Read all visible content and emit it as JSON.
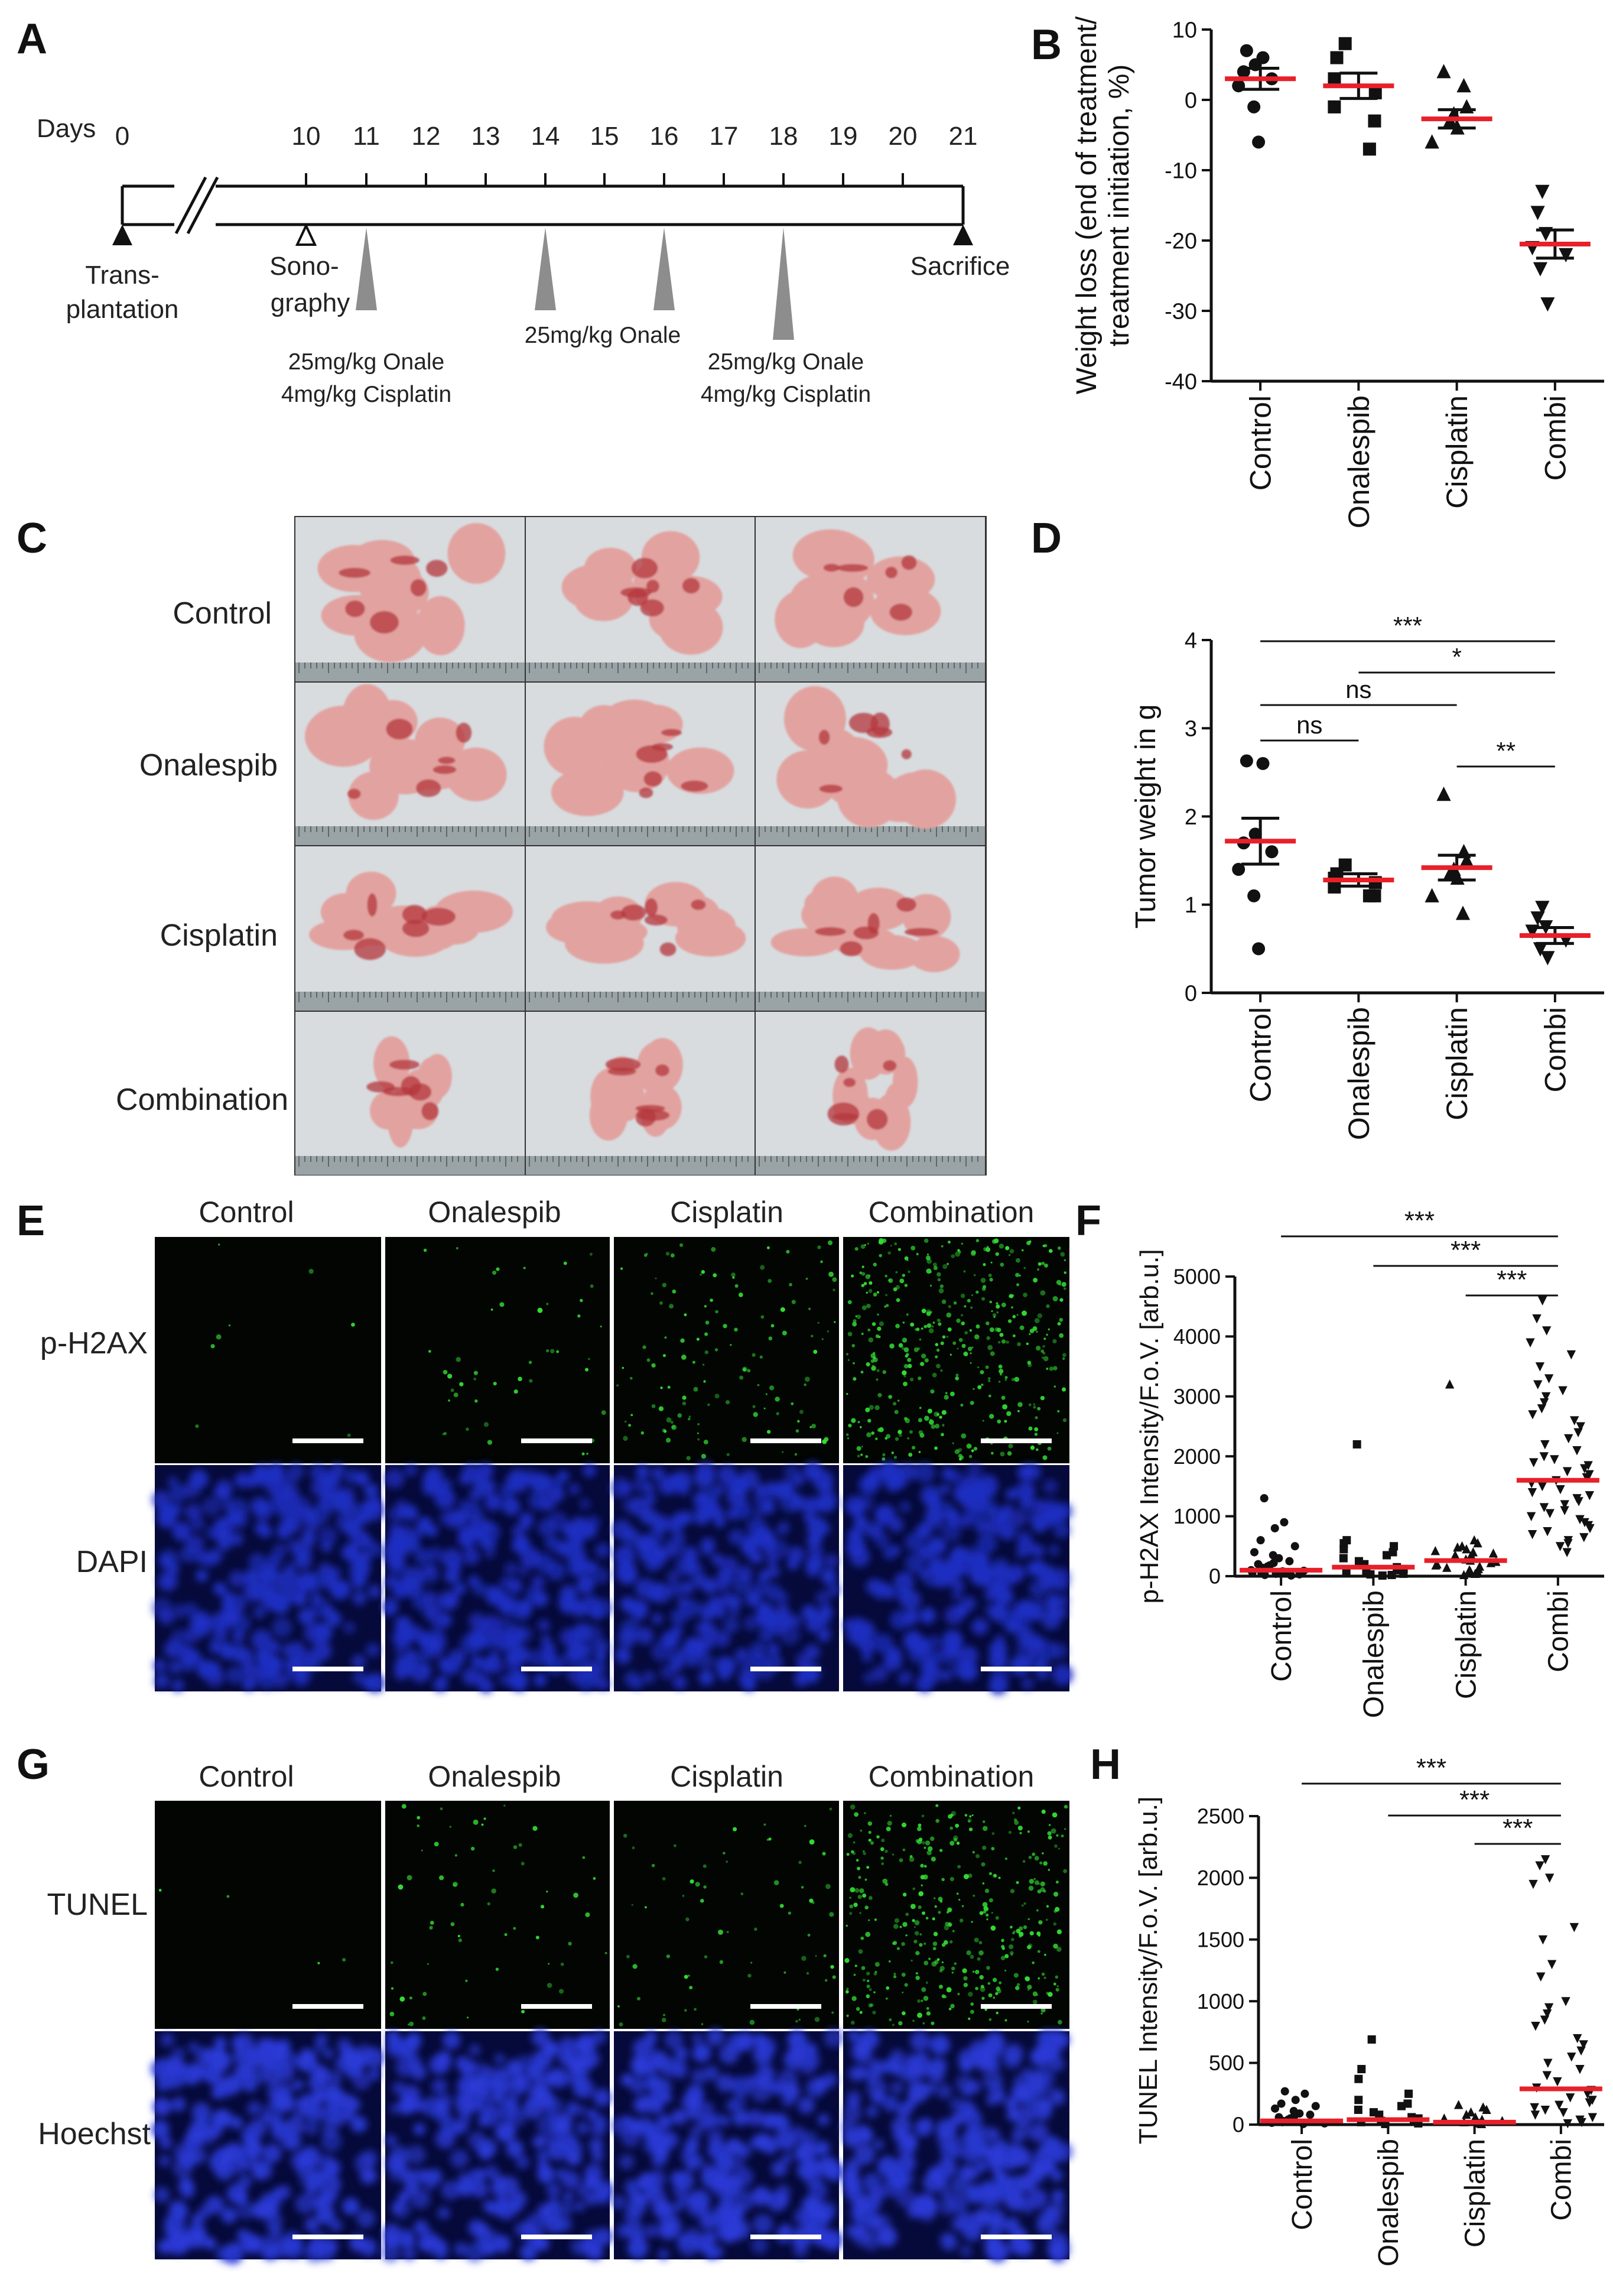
{
  "panel_letters": [
    "A",
    "B",
    "C",
    "D",
    "E",
    "F",
    "G",
    "H"
  ],
  "timeline": {
    "days_label": "Days",
    "ticks": [
      "0",
      "10",
      "11",
      "12",
      "13",
      "14",
      "15",
      "16",
      "17",
      "18",
      "19",
      "20",
      "21"
    ],
    "transplantation": [
      "Trans-",
      "plantation"
    ],
    "sonography": [
      "Sono-",
      "graphy"
    ],
    "sacrifice": "Sacrifice",
    "dose1": [
      "25mg/kg Onale",
      "4mg/kg Cisplatin"
    ],
    "dose2": [
      "25mg/kg Onale"
    ],
    "dose3": [
      "25mg/kg Onale",
      "4mg/kg Cisplatin"
    ]
  },
  "photo_grid": {
    "rows": [
      "Control",
      "Onalespib",
      "Cisplatin",
      "Combination"
    ],
    "colors": {
      "background": "#d8dcdf",
      "tissue": "#e2a3a0",
      "tissue_dark": "#b4353c",
      "ruler": "#9aa3a6"
    }
  },
  "micro_headers": [
    "Control",
    "Onalespib",
    "Cisplatin",
    "Combination"
  ],
  "micro_E": {
    "rows": [
      "p-H2AX",
      "DAPI"
    ],
    "colors": {
      "signal": "#33dd33",
      "nuclei": "#1f2fc4"
    }
  },
  "micro_G": {
    "rows": [
      "TUNEL",
      "Hoechst"
    ],
    "colors": {
      "signal": "#33dd33",
      "nuclei": "#2a3ad6"
    }
  },
  "chart_data": [
    {
      "id": "B",
      "type": "scatter",
      "categories": [
        "Control",
        "Onalespib",
        "Cisplatin",
        "Combi"
      ],
      "ylabel": [
        "Weight loss (end of treatment/",
        "treatment initiation, %)"
      ],
      "ylim": [
        -40,
        10
      ],
      "yticks": [
        -40,
        -30,
        -20,
        -10,
        0,
        10
      ],
      "markers": [
        "circle",
        "square",
        "triangle-up",
        "triangle-down"
      ],
      "points": [
        [
          7,
          6,
          5,
          4,
          3,
          2,
          -1,
          -6
        ],
        [
          8,
          6,
          3,
          1,
          -1,
          -3,
          -7
        ],
        [
          4,
          2,
          -1,
          -2,
          -3,
          -4,
          -6
        ],
        [
          -13,
          -16,
          -19,
          -21,
          -22,
          -24,
          -29
        ]
      ],
      "means": [
        3,
        2,
        -2.7,
        -20.5
      ],
      "sem": [
        1.5,
        1.8,
        1.3,
        2
      ],
      "significance": []
    },
    {
      "id": "D",
      "type": "scatter",
      "categories": [
        "Control",
        "Onalespib",
        "Cisplatin",
        "Combi"
      ],
      "ylabel": [
        "Tumor weight in g"
      ],
      "ylim": [
        0,
        4
      ],
      "yticks": [
        0,
        1,
        2,
        3,
        4
      ],
      "markers": [
        "circle",
        "square",
        "triangle-up",
        "triangle-down"
      ],
      "points": [
        [
          2.63,
          2.6,
          1.8,
          1.7,
          1.6,
          1.4,
          1.1,
          0.5
        ],
        [
          1.45,
          1.35,
          1.3,
          1.25,
          1.2,
          1.1,
          1.1
        ],
        [
          2.25,
          1.6,
          1.5,
          1.4,
          1.35,
          1.3,
          1.1,
          0.9
        ],
        [
          0.97,
          0.85,
          0.75,
          0.7,
          0.6,
          0.5,
          0.4
        ]
      ],
      "means": [
        1.72,
        1.28,
        1.42,
        0.65
      ],
      "sem": [
        0.26,
        0.07,
        0.14,
        0.09
      ],
      "significance": [
        {
          "from": 0,
          "to": 3,
          "label": "***"
        },
        {
          "from": 1,
          "to": 3,
          "label": "*"
        },
        {
          "from": 0,
          "to": 2,
          "label": "ns"
        },
        {
          "from": 0,
          "to": 1,
          "label": "ns"
        },
        {
          "from": 2,
          "to": 3,
          "label": "**"
        }
      ]
    },
    {
      "id": "F",
      "type": "scatter",
      "categories": [
        "Control",
        "Onalespib",
        "Cisplatin",
        "Combi"
      ],
      "ylabel": [
        "p-H2AX Intensity/F.o.V. [arb.u.]"
      ],
      "ylim": [
        0,
        5000
      ],
      "yticks": [
        0,
        1000,
        2000,
        3000,
        4000,
        5000
      ],
      "markers": [
        "circle",
        "square",
        "triangle-up",
        "triangle-down"
      ],
      "points": [
        [
          1300,
          900,
          800,
          600,
          500,
          400,
          350,
          300,
          250,
          220,
          200,
          180,
          160,
          140,
          120,
          100,
          90,
          80,
          70,
          60,
          50,
          40,
          30,
          20,
          10
        ],
        [
          2200,
          600,
          550,
          500,
          450,
          400,
          350,
          300,
          250,
          200,
          150,
          120,
          100,
          80,
          60,
          40,
          30,
          20,
          10
        ],
        [
          3200,
          600,
          550,
          500,
          480,
          450,
          420,
          400,
          380,
          350,
          330,
          300,
          280,
          260,
          240,
          220,
          200,
          180,
          160,
          140,
          120,
          100,
          80,
          60,
          40,
          20
        ],
        [
          4600,
          4300,
          4100,
          3900,
          3700,
          3500,
          3300,
          3200,
          3100,
          3000,
          2900,
          2800,
          2700,
          2600,
          2500,
          2400,
          2300,
          2200,
          2100,
          2000,
          1950,
          1900,
          1850,
          1800,
          1750,
          1700,
          1650,
          1600,
          1550,
          1500,
          1450,
          1400,
          1350,
          1300,
          1250,
          1200,
          1150,
          1100,
          1050,
          1000,
          950,
          900,
          850,
          800,
          750,
          700,
          650,
          600,
          550,
          500,
          400
        ]
      ],
      "means": [
        100,
        150,
        260,
        1600
      ],
      "sem": [
        0,
        0,
        0,
        0
      ],
      "significance": [
        {
          "from": 0,
          "to": 3,
          "label": "***"
        },
        {
          "from": 1,
          "to": 3,
          "label": "***"
        },
        {
          "from": 2,
          "to": 3,
          "label": "***"
        }
      ]
    },
    {
      "id": "H",
      "type": "scatter",
      "categories": [
        "Control",
        "Onalespib",
        "Cisplatin",
        "Combi"
      ],
      "ylabel": [
        "TUNEL Intensity/F.o.V. [arb.u.]"
      ],
      "ylim": [
        0,
        2500
      ],
      "yticks": [
        0,
        500,
        1000,
        1500,
        2000,
        2500
      ],
      "markers": [
        "circle",
        "square",
        "triangle-up",
        "triangle-down"
      ],
      "points": [
        [
          270,
          250,
          200,
          170,
          150,
          130,
          110,
          90,
          80,
          70,
          60,
          50,
          40,
          30,
          20,
          15,
          10,
          5
        ],
        [
          690,
          450,
          370,
          250,
          200,
          170,
          150,
          120,
          100,
          80,
          60,
          50,
          40,
          30,
          20,
          10,
          5
        ],
        [
          160,
          140,
          120,
          100,
          80,
          60,
          50,
          40,
          30,
          20,
          10,
          5
        ],
        [
          2150,
          2100,
          2000,
          1950,
          1600,
          1500,
          1300,
          1200,
          1000,
          950,
          900,
          850,
          800,
          700,
          650,
          600,
          550,
          500,
          450,
          400,
          350,
          300,
          280,
          250,
          220,
          200,
          180,
          160,
          140,
          120,
          100,
          80,
          60,
          40,
          20,
          10
        ]
      ],
      "means": [
        30,
        40,
        20,
        290
      ],
      "sem": [
        0,
        0,
        0,
        0
      ],
      "significance": [
        {
          "from": 0,
          "to": 3,
          "label": "***"
        },
        {
          "from": 1,
          "to": 3,
          "label": "***"
        },
        {
          "from": 2,
          "to": 3,
          "label": "***"
        }
      ]
    }
  ]
}
